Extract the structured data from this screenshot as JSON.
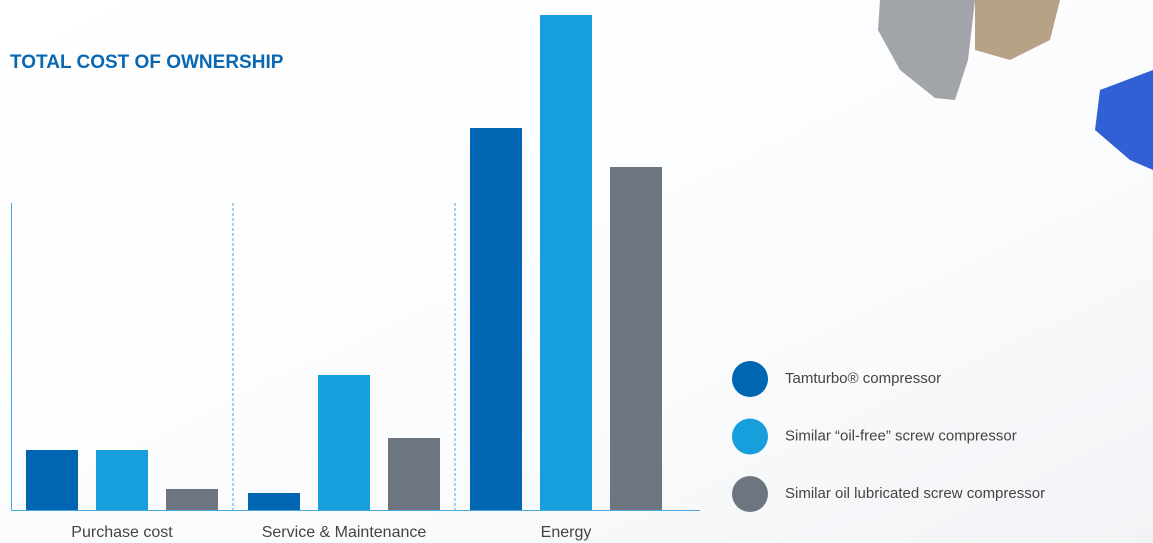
{
  "chart_data": {
    "type": "bar",
    "title": "TOTAL COST OF OWNERSHIP",
    "categories": [
      "Purchase cost",
      "Service & Maintenance",
      "Energy"
    ],
    "series": [
      {
        "name": "Tamturbo® compressor",
        "color": "#0066b1",
        "values": [
          60,
          17,
          382
        ]
      },
      {
        "name": "Similar “oil-free” screw compressor",
        "color": "#169fdc",
        "values": [
          60,
          135,
          495
        ]
      },
      {
        "name": "Similar oil lubricated screw compressor",
        "color": "#6d7580",
        "values": [
          21,
          72,
          343
        ]
      }
    ],
    "ylim": [
      0,
      495
    ],
    "legend": "right"
  }
}
